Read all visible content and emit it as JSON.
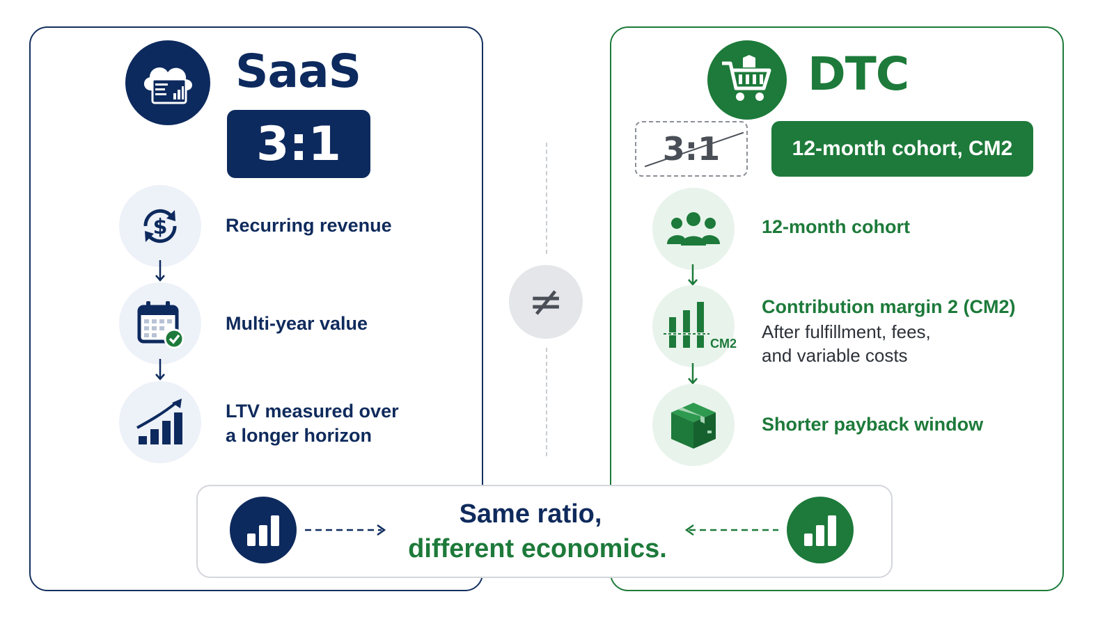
{
  "saas": {
    "title": "SaaS",
    "ratio": "3:1",
    "items": [
      {
        "label": "Recurring revenue",
        "icon": "dollar-cycle-icon"
      },
      {
        "label": "Multi-year value",
        "icon": "calendar-check-icon"
      },
      {
        "label_line1": "LTV measured over",
        "label_line2": "a longer horizon",
        "icon": "growth-chart-icon"
      }
    ],
    "header_icon": "cloud-dashboard-icon"
  },
  "dtc": {
    "title": "DTC",
    "struck_ratio": "3:1",
    "pill": "12-month cohort, CM2",
    "header_icon": "shopping-cart-icon",
    "items": [
      {
        "label": "12-month cohort",
        "icon": "group-people-icon"
      },
      {
        "label": "Contribution margin 2 (CM2)",
        "sub_line1": "After fulfillment, fees,",
        "sub_line2": "and variable costs",
        "icon": "cm2-bars-icon",
        "icon_text": "CM2"
      },
      {
        "label": "Shorter payback window",
        "icon": "package-box-icon"
      }
    ]
  },
  "compare_symbol": "≠",
  "bottom": {
    "line1": "Same ratio,",
    "line2": "different economics."
  },
  "colors": {
    "navy": "#0d2a5e",
    "green": "#1d7a3a",
    "light_blue": "#edf1f8",
    "light_green": "#e8f3eb"
  }
}
